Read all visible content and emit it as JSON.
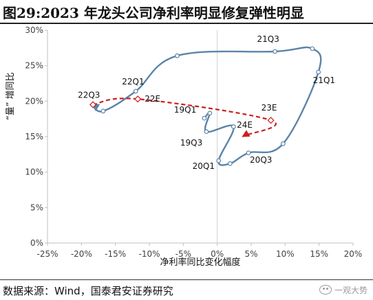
{
  "title": "图29:2023 年龙头公司净利率明显修复弹性明显",
  "source": "数据来源：Wind，国泰君安证券研究",
  "watermark": "一观大势",
  "chart_data": {
    "type": "scatter",
    "xlabel": "净利率同比变化幅度",
    "ylabel": "“量” 增同比",
    "xlim": [
      -0.25,
      0.2
    ],
    "ylim": [
      0,
      0.3
    ],
    "x_ticks": [
      "-25%",
      "-20%",
      "-15%",
      "-10%",
      "-5%",
      "0%",
      "5%",
      "10%",
      "15%",
      "20%"
    ],
    "y_ticks": [
      "0%",
      "5%",
      "10%",
      "15%",
      "20%",
      "25%",
      "30%"
    ],
    "grid": false,
    "series": [
      {
        "style": "historical",
        "color": "#5b84a8",
        "points": [
          {
            "label": "19Q1",
            "x": -0.019,
            "y": 0.176
          },
          {
            "label": "",
            "x": -0.011,
            "y": 0.183
          },
          {
            "label": "19Q3",
            "x": -0.016,
            "y": 0.157
          },
          {
            "label": "",
            "x": 0.024,
            "y": 0.164
          },
          {
            "label": "20Q1",
            "x": 0.002,
            "y": 0.116
          },
          {
            "label": "",
            "x": 0.019,
            "y": 0.112
          },
          {
            "label": "20Q3",
            "x": 0.046,
            "y": 0.127
          },
          {
            "label": "",
            "x": 0.097,
            "y": 0.14
          },
          {
            "label": "21Q1",
            "x": 0.149,
            "y": 0.241
          },
          {
            "label": "",
            "x": 0.14,
            "y": 0.274
          },
          {
            "label": "21Q3",
            "x": 0.085,
            "y": 0.27
          },
          {
            "label": "",
            "x": -0.059,
            "y": 0.264
          },
          {
            "label": "22Q1",
            "x": -0.12,
            "y": 0.214
          },
          {
            "label": "",
            "x": -0.168,
            "y": 0.186
          },
          {
            "label": "22Q3",
            "x": -0.183,
            "y": 0.195
          }
        ]
      },
      {
        "style": "forecast",
        "color": "#cc1f1f",
        "points": [
          {
            "label": "22Q3",
            "x": -0.183,
            "y": 0.195
          },
          {
            "label": "22E",
            "x": -0.117,
            "y": 0.203
          },
          {
            "label": "23E",
            "x": 0.079,
            "y": 0.173
          },
          {
            "label": "24E",
            "x": 0.039,
            "y": 0.151
          }
        ]
      }
    ]
  }
}
